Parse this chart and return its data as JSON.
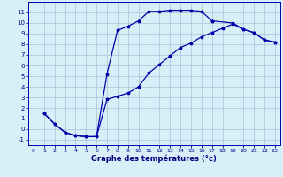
{
  "xlabel": "Graphe des températures (°c)",
  "bg_color": "#d8eff8",
  "grid_color": "#aaccdd",
  "line_color": "#0000aa",
  "xlim": [
    -0.5,
    23.5
  ],
  "ylim": [
    -1.5,
    12.0
  ],
  "xticks": [
    0,
    1,
    2,
    3,
    4,
    5,
    6,
    7,
    8,
    9,
    10,
    11,
    12,
    13,
    14,
    15,
    16,
    17,
    18,
    19,
    20,
    21,
    22,
    23
  ],
  "yticks": [
    -1,
    0,
    1,
    2,
    3,
    4,
    5,
    6,
    7,
    8,
    9,
    10,
    11
  ],
  "line1_x": [
    1,
    2,
    3,
    4,
    5,
    6,
    7,
    8,
    9,
    10,
    11,
    12,
    13,
    14,
    15,
    16,
    17
  ],
  "line1_y": [
    1.5,
    0.5,
    -0.3,
    -0.6,
    -0.7,
    -0.7,
    5.2,
    9.3,
    9.7,
    10.2,
    11.1,
    11.1,
    11.2,
    11.2,
    11.2,
    11.1,
    10.2
  ],
  "line2_x": [
    1,
    2,
    3,
    4,
    5,
    6,
    7,
    8,
    9,
    10,
    11,
    12,
    13,
    14,
    15,
    16,
    17,
    18,
    19,
    20,
    21,
    22,
    23
  ],
  "line2_y": [
    1.5,
    0.5,
    -0.3,
    -0.6,
    -0.7,
    -0.7,
    2.8,
    3.1,
    3.4,
    4.0,
    5.3,
    6.1,
    6.9,
    7.7,
    8.1,
    8.7,
    9.1,
    9.5,
    9.9,
    9.4,
    9.1,
    8.4,
    8.2
  ],
  "line3_x": [
    17,
    19,
    20,
    21,
    22,
    23
  ],
  "line3_y": [
    10.2,
    10.0,
    9.4,
    9.1,
    8.4,
    8.2
  ]
}
